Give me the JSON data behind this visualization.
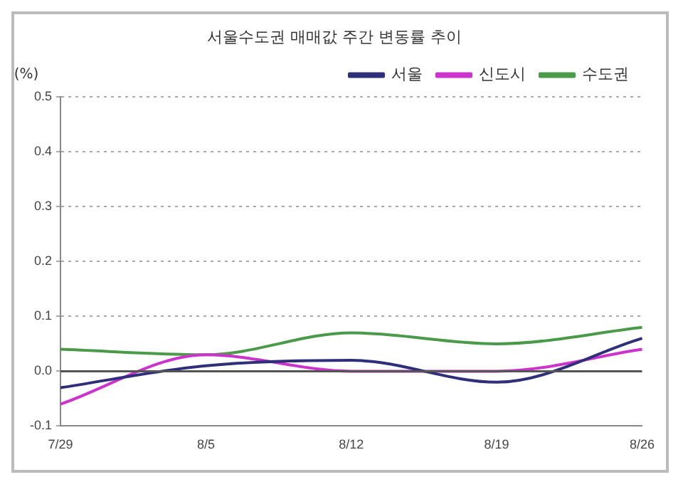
{
  "chart_data": {
    "type": "line",
    "title": "서울수도권 매매값 주간 변동률 추이",
    "ylabel": "(%)",
    "categories": [
      "7/29",
      "8/5",
      "8/12",
      "8/19",
      "8/26"
    ],
    "series": [
      {
        "name": "서울",
        "color": "#2e2e7a",
        "values": [
          -0.03,
          0.01,
          0.02,
          -0.02,
          0.06
        ]
      },
      {
        "name": "신도시",
        "color": "#cc33cc",
        "values": [
          -0.06,
          0.03,
          0.0,
          0.0,
          0.04
        ]
      },
      {
        "name": "수도권",
        "color": "#4a9a4a",
        "values": [
          0.04,
          0.03,
          0.07,
          0.05,
          0.08
        ]
      }
    ],
    "ylim": [
      -0.1,
      0.5
    ],
    "yticks": [
      {
        "value": -0.1,
        "label": "-0.1"
      },
      {
        "value": 0,
        "label": "0.0"
      },
      {
        "value": 0.1,
        "label": "0.1"
      },
      {
        "value": 0.2,
        "label": "0.2"
      },
      {
        "value": 0.3,
        "label": "0.3"
      },
      {
        "value": 0.4,
        "label": "0.4"
      },
      {
        "value": 0.5,
        "label": "0.5"
      }
    ],
    "ref_lines": [
      {
        "axis": "y",
        "value": 0,
        "color": "#555555"
      }
    ],
    "grid": "y",
    "legend": "top right",
    "marker": "none",
    "line_style": "solid"
  }
}
